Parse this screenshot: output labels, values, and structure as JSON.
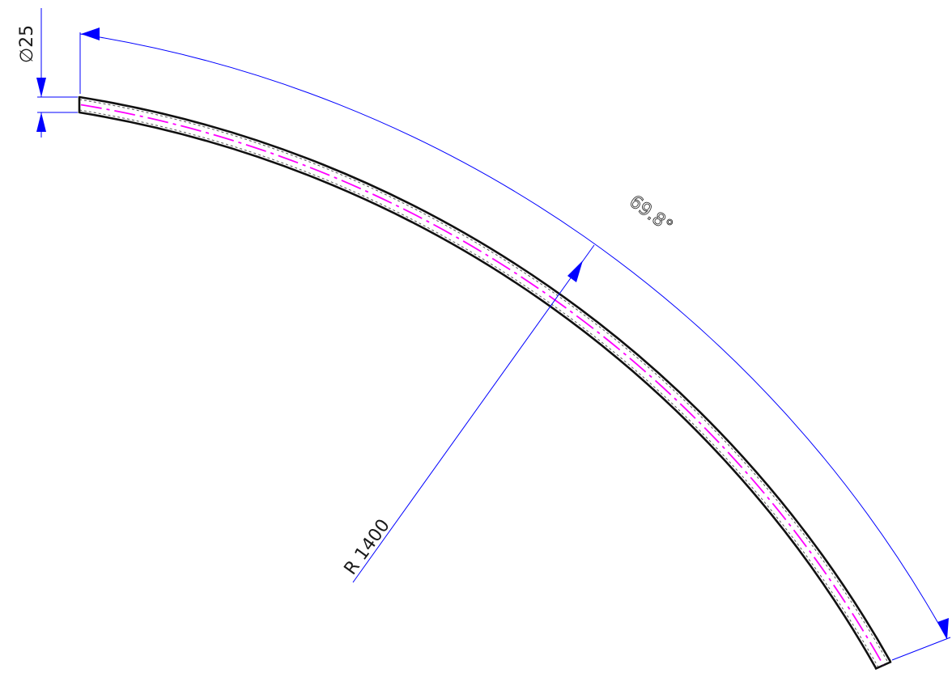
{
  "drawing": {
    "dimensions": {
      "diameter_label": "∅25",
      "angle_label": "69.8°",
      "radius_label": "R 1400"
    },
    "colors": {
      "pipe_outline": "#111111",
      "centerline": "#ff00ff",
      "dimension_lines": "#0000ff",
      "text": "#1a1a1a",
      "background": "#ffffff"
    }
  }
}
